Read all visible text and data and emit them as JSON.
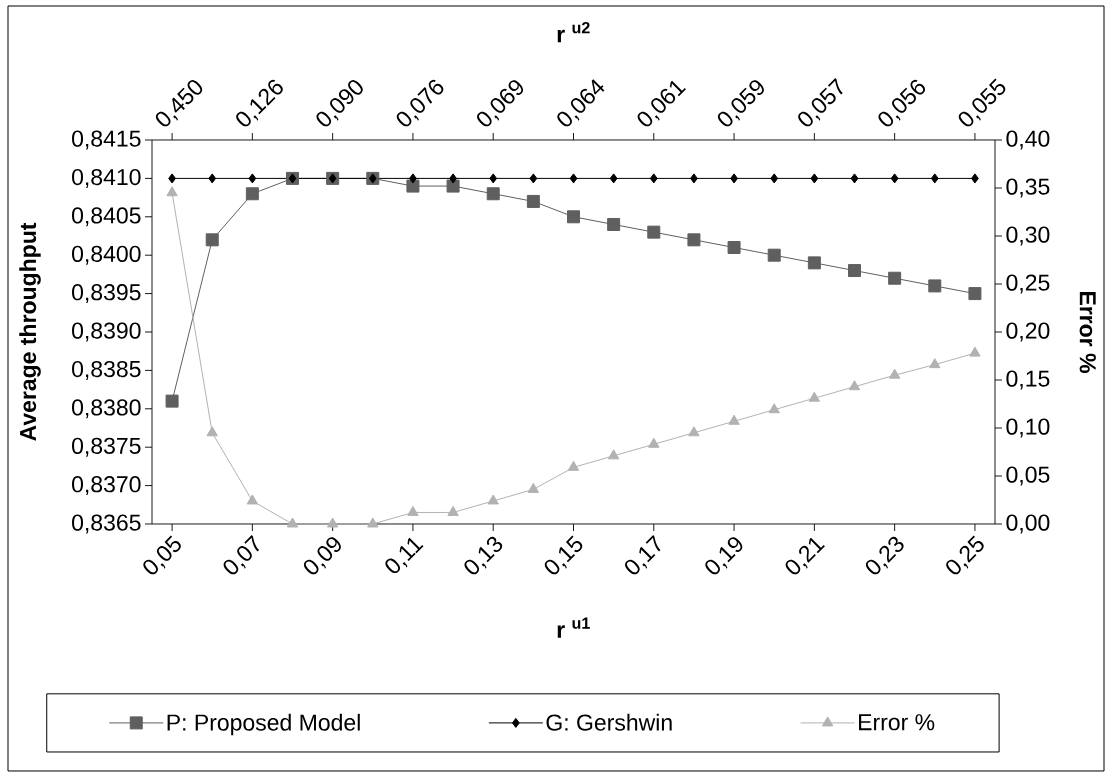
{
  "chart_data": {
    "type": "line",
    "xlabel": "r $^{u1}$",
    "ylabel": "Average throughput",
    "y2label": "Error %",
    "x2label": "r $^{u2}$",
    "annotations": [
      "0,450",
      "0,126",
      "0,090",
      "0,076",
      "0,069",
      "0,064",
      "0,061",
      "0,059",
      "0,057",
      "0,056",
      "0,055"
    ],
    "x": [
      0.05,
      0.06,
      0.07,
      0.08,
      0.09,
      0.1,
      0.11,
      0.12,
      0.13,
      0.14,
      0.15,
      0.16,
      0.17,
      0.18,
      0.19,
      0.2,
      0.21,
      0.22,
      0.23,
      0.24,
      0.25
    ],
    "series": [
      {
        "name": "P: Proposed Model",
        "color": "#5f5f5f",
        "marker": "square",
        "values": [
          0.8381,
          0.8402,
          0.8408,
          0.841,
          0.841,
          0.841,
          0.8409,
          0.8409,
          0.8408,
          0.8407,
          0.8405,
          0.8404,
          0.8403,
          0.8402,
          0.8401,
          0.84,
          0.8399,
          0.8398,
          0.8397,
          0.8396,
          0.8395
        ]
      },
      {
        "name": "G: Gershwin",
        "color": "#000000",
        "marker": "diamond",
        "values": [
          0.841,
          0.841,
          0.841,
          0.841,
          0.841,
          0.841,
          0.841,
          0.841,
          0.841,
          0.841,
          0.841,
          0.841,
          0.841,
          0.841,
          0.841,
          0.841,
          0.841,
          0.841,
          0.841,
          0.841,
          0.841
        ]
      },
      {
        "name": "Error %",
        "color": "#b2b2b2",
        "marker": "triangle",
        "axis": "y2",
        "values": [
          0.345,
          0.095,
          0.024,
          0,
          0,
          0,
          0.012,
          0.012,
          0.024,
          0.036,
          0.059,
          0.071,
          0.083,
          0.095,
          0.107,
          0.119,
          0.131,
          0.143,
          0.155,
          0.166,
          0.178
        ]
      }
    ],
    "xlim": [
      0.045,
      0.255
    ],
    "xticks": [
      {
        "value": 0.05,
        "label": "0,05"
      },
      {
        "value": 0.07,
        "label": "0,07"
      },
      {
        "value": 0.09,
        "label": "0,09"
      },
      {
        "value": 0.11,
        "label": "0,11"
      },
      {
        "value": 0.13,
        "label": "0,13"
      },
      {
        "value": 0.15,
        "label": "0,15"
      },
      {
        "value": 0.17,
        "label": "0,17"
      },
      {
        "value": 0.19,
        "label": "0,19"
      },
      {
        "value": 0.21,
        "label": "0,21"
      },
      {
        "value": 0.23,
        "label": "0,23"
      },
      {
        "value": 0.25,
        "label": "0,25"
      }
    ],
    "ylim": [
      0.8365,
      0.8415
    ],
    "yticks": [
      {
        "value": 0.8365,
        "label": "0,8365"
      },
      {
        "value": 0.837,
        "label": "0,8370"
      },
      {
        "value": 0.8375,
        "label": "0,8375"
      },
      {
        "value": 0.838,
        "label": "0,8380"
      },
      {
        "value": 0.8385,
        "label": "0,8385"
      },
      {
        "value": 0.839,
        "label": "0,8390"
      },
      {
        "value": 0.8395,
        "label": "0,8395"
      },
      {
        "value": 0.84,
        "label": "0,8400"
      },
      {
        "value": 0.8405,
        "label": "0,8405"
      },
      {
        "value": 0.841,
        "label": "0,8410"
      },
      {
        "value": 0.8415,
        "label": "0,8415"
      }
    ],
    "y2lim": [
      0,
      0.4
    ],
    "y2ticks": [
      {
        "value": 0,
        "label": "0,00"
      },
      {
        "value": 0.05,
        "label": "0,05"
      },
      {
        "value": 0.1,
        "label": "0,10"
      },
      {
        "value": 0.15,
        "label": "0,15"
      },
      {
        "value": 0.2,
        "label": "0,20"
      },
      {
        "value": 0.25,
        "label": "0,25"
      },
      {
        "value": 0.3,
        "label": "0,30"
      },
      {
        "value": 0.35,
        "label": "0,35"
      },
      {
        "value": 0.4,
        "label": "0,40"
      }
    ],
    "legend": "bottom",
    "line_style": "solid"
  }
}
